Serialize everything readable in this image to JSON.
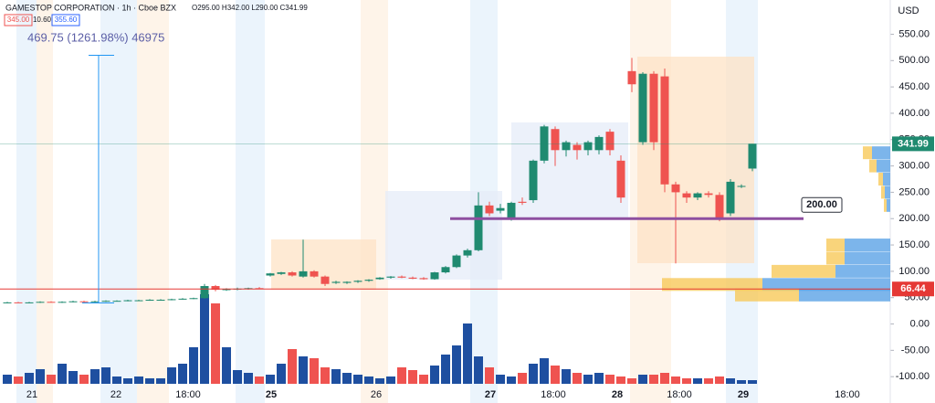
{
  "chart_data": {
    "type": "candlestick",
    "title": "GAMESTOP CORPORATION · 1h · Cboe BZX",
    "ohlc_header": "O295.00 H342.00 L290.00 C341.99",
    "header_boxes": [
      "345.00",
      "10.60",
      "355.60"
    ],
    "currency": "USD",
    "measure": {
      "text": "469.75 (1261.98%) 46975",
      "low": 40,
      "high": 510
    },
    "ylim": [
      -150,
      615
    ],
    "yticks": [
      {
        "value": 550,
        "label": "550.00"
      },
      {
        "value": 500,
        "label": "500.00"
      },
      {
        "value": 450,
        "label": "450.00"
      },
      {
        "value": 400,
        "label": "400.00"
      },
      {
        "value": 350,
        "label": "350.00"
      },
      {
        "value": 300,
        "label": "300.00"
      },
      {
        "value": 250,
        "label": "250.00"
      },
      {
        "value": 200,
        "label": "200.00"
      },
      {
        "value": 150,
        "label": "150.00"
      },
      {
        "value": 100,
        "label": "100.00"
      },
      {
        "value": 50,
        "label": "50.00"
      },
      {
        "value": 0,
        "label": "0.00"
      },
      {
        "value": -50,
        "label": "-50.00"
      },
      {
        "value": -100,
        "label": "-100.00"
      }
    ],
    "x_labels": [
      "21",
      "22",
      "18:00",
      "25",
      "26",
      "27",
      "18:00",
      "28",
      "18:00",
      "29",
      "18:00"
    ],
    "up_color": "#1f8a70",
    "down_color": "#ef5350",
    "volume_up_color": "#1e4fa0",
    "candles": [
      [
        40,
        42,
        39,
        41
      ],
      [
        41,
        42,
        40,
        40
      ],
      [
        40,
        42,
        39,
        41
      ],
      [
        41,
        43,
        40,
        42
      ],
      [
        42,
        43,
        41,
        41
      ],
      [
        41,
        43,
        40,
        42
      ],
      [
        42,
        44,
        41,
        43
      ],
      [
        43,
        44,
        41,
        42
      ],
      [
        42,
        44,
        41,
        43
      ],
      [
        43,
        45,
        42,
        44
      ],
      [
        44,
        45,
        43,
        44
      ],
      [
        44,
        46,
        43,
        45
      ],
      [
        45,
        46,
        44,
        45
      ],
      [
        45,
        47,
        44,
        46
      ],
      [
        46,
        47,
        45,
        46
      ],
      [
        46,
        48,
        45,
        47
      ],
      [
        47,
        49,
        46,
        48
      ],
      [
        48,
        50,
        47,
        49
      ],
      [
        49,
        76,
        48,
        72
      ],
      [
        72,
        74,
        62,
        65
      ],
      [
        65,
        68,
        63,
        66
      ],
      [
        66,
        69,
        64,
        67
      ],
      [
        67,
        69,
        65,
        68
      ],
      [
        68,
        70,
        66,
        67
      ],
      [
        92,
        97,
        90,
        96
      ],
      [
        95,
        99,
        93,
        98
      ],
      [
        98,
        100,
        90,
        92
      ],
      [
        90,
        160,
        88,
        100
      ],
      [
        100,
        102,
        88,
        90
      ],
      [
        90,
        92,
        72,
        76
      ],
      [
        78,
        82,
        76,
        80
      ],
      [
        78,
        81,
        76,
        80
      ],
      [
        80,
        83,
        78,
        82
      ],
      [
        82,
        85,
        80,
        84
      ],
      [
        85,
        89,
        84,
        88
      ],
      [
        88,
        91,
        86,
        90
      ],
      [
        90,
        92,
        87,
        88
      ],
      [
        88,
        90,
        85,
        86
      ],
      [
        87,
        89,
        84,
        85
      ],
      [
        85,
        99,
        84,
        98
      ],
      [
        98,
        110,
        96,
        108
      ],
      [
        108,
        132,
        106,
        130
      ],
      [
        130,
        143,
        126,
        140
      ],
      [
        140,
        250,
        138,
        225
      ],
      [
        225,
        232,
        205,
        210
      ],
      [
        215,
        228,
        210,
        220
      ],
      [
        200,
        232,
        196,
        230
      ],
      [
        232,
        240,
        226,
        230
      ],
      [
        235,
        312,
        230,
        310
      ],
      [
        310,
        378,
        305,
        375
      ],
      [
        370,
        375,
        300,
        330
      ],
      [
        330,
        348,
        318,
        345
      ],
      [
        340,
        345,
        312,
        330
      ],
      [
        330,
        348,
        320,
        345
      ],
      [
        330,
        358,
        322,
        355
      ],
      [
        365,
        370,
        320,
        330
      ],
      [
        310,
        320,
        230,
        240
      ],
      [
        480,
        505,
        440,
        455
      ],
      [
        345,
        478,
        340,
        475
      ],
      [
        475,
        480,
        330,
        345
      ],
      [
        470,
        485,
        250,
        265
      ],
      [
        265,
        270,
        115,
        250
      ],
      [
        248,
        252,
        230,
        240
      ],
      [
        240,
        250,
        235,
        248
      ],
      [
        248,
        252,
        240,
        245
      ],
      [
        245,
        250,
        195,
        200
      ],
      [
        210,
        275,
        205,
        270
      ],
      [
        262,
        265,
        258,
        262
      ],
      [
        295,
        342,
        290,
        341.99
      ]
    ],
    "volume": [
      10,
      8,
      12,
      16,
      10,
      22,
      14,
      10,
      16,
      18,
      8,
      6,
      8,
      6,
      6,
      18,
      22,
      40,
      98,
      88,
      40,
      15,
      12,
      8,
      10,
      22,
      38,
      30,
      28,
      18,
      16,
      12,
      10,
      8,
      6,
      8,
      18,
      15,
      10,
      20,
      32,
      42,
      66,
      30,
      18,
      10,
      8,
      12,
      22,
      28,
      20,
      16,
      12,
      10,
      12,
      10,
      8,
      6,
      10,
      10,
      12,
      8,
      6,
      6,
      6,
      8,
      6,
      4,
      4
    ],
    "volume_profile": [
      [
        325,
        20,
        10
      ],
      [
        300,
        15,
        8
      ],
      [
        275,
        8,
        5
      ],
      [
        250,
        6,
        4
      ],
      [
        225,
        4,
        3
      ],
      [
        150,
        50,
        20
      ],
      [
        125,
        50,
        20
      ],
      [
        100,
        60,
        70
      ],
      [
        75,
        140,
        110
      ],
      [
        55,
        100,
        70
      ]
    ],
    "price_lines": [
      {
        "value": 341.99,
        "color": "#1f8a70"
      },
      {
        "value": 66.44,
        "color": "#e53935"
      }
    ],
    "level_line": {
      "value": 200,
      "label": "200.00",
      "color": "#8e4fa0"
    }
  }
}
